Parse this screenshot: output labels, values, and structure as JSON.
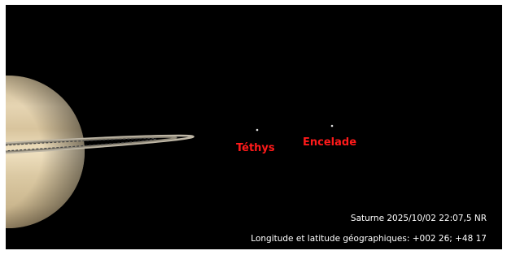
{
  "moons": [
    {
      "name": "Téthys"
    },
    {
      "name": "Encelade"
    }
  ],
  "status": {
    "object_time": "Saturne 2025/10/02 22:07,5 NR",
    "coordinates": "Longitude et latitude géographiques: +002 26; +48 17"
  }
}
